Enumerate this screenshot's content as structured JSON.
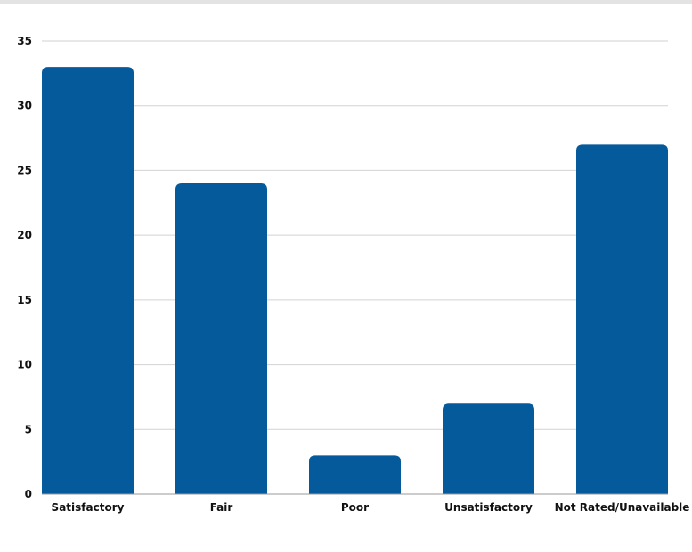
{
  "chart_data": {
    "type": "bar",
    "title": "",
    "xlabel": "",
    "ylabel": "",
    "categories": [
      "Satisfactory",
      "Fair",
      "Poor",
      "Unsatisfactory",
      "Not Rated/Unavailable"
    ],
    "values": [
      33,
      24,
      3,
      7,
      27
    ],
    "ylim": [
      0,
      35
    ],
    "yticks": [
      0,
      5,
      10,
      15,
      20,
      25,
      30,
      35
    ],
    "grid": true,
    "legend": "none",
    "bar_color": "#045a9a",
    "gridline_color": "#d2d2d2"
  }
}
